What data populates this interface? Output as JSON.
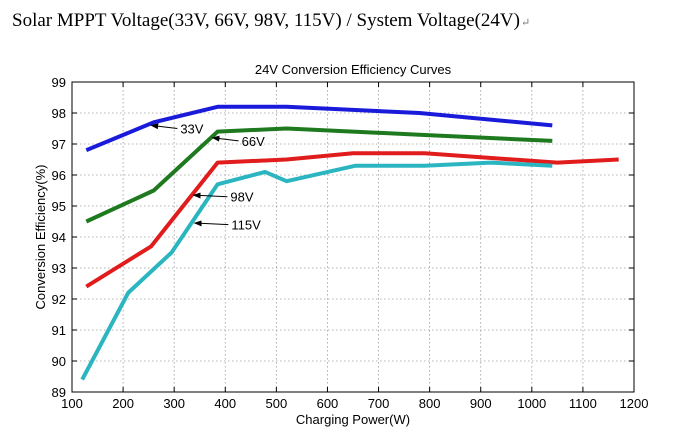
{
  "page_heading": "Solar MPPT Voltage(33V, 66V, 98V, 115V) / System Voltage(24V)",
  "chart_data": {
    "type": "line",
    "title": "24V Conversion Efficiency Curves",
    "xlabel": "Charging Power(W)",
    "ylabel": "Conversion Efficiency(%)",
    "xlim": [
      100,
      1200
    ],
    "ylim": [
      89,
      99
    ],
    "x_ticks": [
      100,
      200,
      300,
      400,
      500,
      600,
      700,
      800,
      900,
      1000,
      1100,
      1200
    ],
    "y_ticks": [
      89,
      90,
      91,
      92,
      93,
      94,
      95,
      96,
      97,
      98,
      99
    ],
    "grid": true,
    "series": [
      {
        "name": "33V",
        "color": "#1a1adb",
        "x": [
          128,
          260,
          385,
          520,
          780,
          1040
        ],
        "y": [
          96.8,
          97.7,
          98.2,
          98.2,
          98.0,
          97.6
        ]
      },
      {
        "name": "66V",
        "color": "#1f7a1f",
        "x": [
          128,
          260,
          385,
          520,
          780,
          1040
        ],
        "y": [
          94.5,
          95.5,
          97.4,
          97.5,
          97.3,
          97.1
        ]
      },
      {
        "name": "98V",
        "color": "#e01c1c",
        "x": [
          128,
          255,
          385,
          520,
          650,
          790,
          1050,
          1170
        ],
        "y": [
          92.4,
          93.7,
          96.4,
          96.5,
          96.7,
          96.7,
          96.4,
          96.5
        ]
      },
      {
        "name": "115V",
        "color": "#2ab5c0",
        "x": [
          120,
          210,
          295,
          385,
          478,
          520,
          655,
          790,
          920,
          1040
        ],
        "y": [
          89.4,
          92.2,
          93.5,
          95.7,
          96.1,
          95.8,
          96.3,
          96.3,
          96.4,
          96.3
        ]
      }
    ],
    "annotations": [
      {
        "text": "33V",
        "series": "33V",
        "arrow_to": [
          255,
          97.6
        ],
        "text_at": [
          312,
          97.5
        ]
      },
      {
        "text": "66V",
        "series": "66V",
        "arrow_to": [
          375,
          97.2
        ],
        "text_at": [
          432,
          97.1
        ]
      },
      {
        "text": "98V",
        "series": "98V",
        "arrow_to": [
          338,
          95.35
        ],
        "text_at": [
          410,
          95.3
        ]
      },
      {
        "text": "115V",
        "series": "115V",
        "arrow_to": [
          340,
          94.45
        ],
        "text_at": [
          412,
          94.4
        ]
      }
    ]
  }
}
